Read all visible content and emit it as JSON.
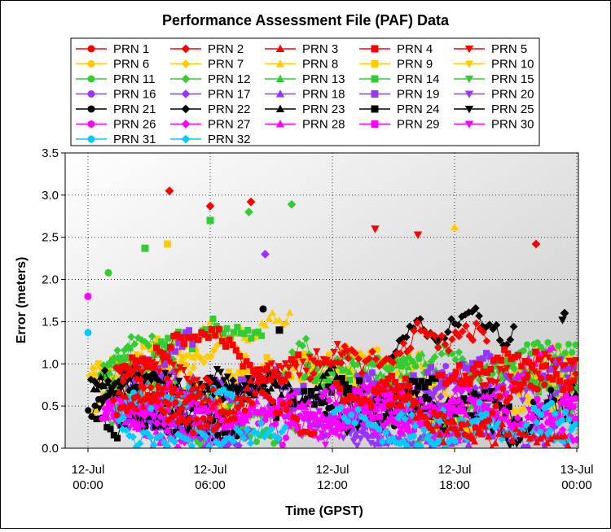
{
  "chart_data": {
    "type": "line",
    "title": "Performance Assessment File (PAF) Data",
    "xlabel": "Time (GPST)",
    "ylabel": "Error (meters)",
    "ylim": [
      0,
      3.5
    ],
    "yticks": [
      0.0,
      0.5,
      1.0,
      1.5,
      2.0,
      2.5,
      3.0,
      3.5
    ],
    "xlim": [
      "12-Jul 00:00",
      "13-Jul 00:00"
    ],
    "xticks": [
      {
        "line1": "12-Jul",
        "line2": "00:00",
        "hour": 0
      },
      {
        "line1": "12-Jul",
        "line2": "06:00",
        "hour": 6
      },
      {
        "line1": "12-Jul",
        "line2": "12:00",
        "hour": 12
      },
      {
        "line1": "12-Jul",
        "line2": "18:00",
        "hour": 18
      },
      {
        "line1": "13-Jul",
        "line2": "00:00",
        "hour": 24
      }
    ],
    "grid": true,
    "legend_position": "top",
    "series": [
      {
        "name": "PRN 1",
        "color": "#ff0000",
        "marker": "circle"
      },
      {
        "name": "PRN 2",
        "color": "#ff0000",
        "marker": "diamond"
      },
      {
        "name": "PRN 3",
        "color": "#ff0000",
        "marker": "triangle-up"
      },
      {
        "name": "PRN 4",
        "color": "#ff0000",
        "marker": "square"
      },
      {
        "name": "PRN 5",
        "color": "#ff0000",
        "marker": "triangle-down"
      },
      {
        "name": "PRN 6",
        "color": "#ffcc00",
        "marker": "circle"
      },
      {
        "name": "PRN 7",
        "color": "#ffcc00",
        "marker": "diamond"
      },
      {
        "name": "PRN 8",
        "color": "#ffcc00",
        "marker": "triangle-up"
      },
      {
        "name": "PRN 9",
        "color": "#ffcc00",
        "marker": "square"
      },
      {
        "name": "PRN 10",
        "color": "#ffcc00",
        "marker": "triangle-down"
      },
      {
        "name": "PRN 11",
        "color": "#33cc33",
        "marker": "circle"
      },
      {
        "name": "PRN 12",
        "color": "#33cc33",
        "marker": "diamond"
      },
      {
        "name": "PRN 13",
        "color": "#33cc33",
        "marker": "triangle-up"
      },
      {
        "name": "PRN 14",
        "color": "#33cc33",
        "marker": "square"
      },
      {
        "name": "PRN 15",
        "color": "#33cc33",
        "marker": "triangle-down"
      },
      {
        "name": "PRN 16",
        "color": "#9933ff",
        "marker": "circle"
      },
      {
        "name": "PRN 17",
        "color": "#9933ff",
        "marker": "diamond"
      },
      {
        "name": "PRN 18",
        "color": "#9933ff",
        "marker": "triangle-up"
      },
      {
        "name": "PRN 19",
        "color": "#9933ff",
        "marker": "square"
      },
      {
        "name": "PRN 20",
        "color": "#9933ff",
        "marker": "triangle-down"
      },
      {
        "name": "PRN 21",
        "color": "#000000",
        "marker": "circle"
      },
      {
        "name": "PRN 22",
        "color": "#000000",
        "marker": "diamond"
      },
      {
        "name": "PRN 23",
        "color": "#000000",
        "marker": "triangle-up"
      },
      {
        "name": "PRN 24",
        "color": "#000000",
        "marker": "square"
      },
      {
        "name": "PRN 25",
        "color": "#000000",
        "marker": "triangle-down"
      },
      {
        "name": "PRN 26",
        "color": "#ff00ff",
        "marker": "circle"
      },
      {
        "name": "PRN 27",
        "color": "#ff00ff",
        "marker": "diamond"
      },
      {
        "name": "PRN 28",
        "color": "#ff00ff",
        "marker": "triangle-up"
      },
      {
        "name": "PRN 29",
        "color": "#ff00ff",
        "marker": "square"
      },
      {
        "name": "PRN 30",
        "color": "#ff00ff",
        "marker": "triangle-down"
      },
      {
        "name": "PRN 31",
        "color": "#00ccff",
        "marker": "circle"
      },
      {
        "name": "PRN 32",
        "color": "#00ccff",
        "marker": "diamond"
      }
    ],
    "highlighted_points": [
      {
        "series": "PRN 2",
        "hour": 4.0,
        "value": 3.05
      },
      {
        "series": "PRN 2",
        "hour": 6.0,
        "value": 2.87
      },
      {
        "series": "PRN 2",
        "hour": 8.0,
        "value": 2.92
      },
      {
        "series": "PRN 12",
        "hour": 10.0,
        "value": 2.89
      },
      {
        "series": "PRN 12",
        "hour": 7.9,
        "value": 2.8
      },
      {
        "series": "PRN 14",
        "hour": 2.8,
        "value": 2.37
      },
      {
        "series": "PRN 14",
        "hour": 6.0,
        "value": 2.7
      },
      {
        "series": "PRN 8",
        "hour": 18.0,
        "value": 2.62
      },
      {
        "series": "PRN 5",
        "hour": 14.1,
        "value": 2.6
      },
      {
        "series": "PRN 5",
        "hour": 16.2,
        "value": 2.53
      },
      {
        "series": "PRN 2",
        "hour": 22.0,
        "value": 2.42
      },
      {
        "series": "PRN 17",
        "hour": 8.7,
        "value": 2.3
      },
      {
        "series": "PRN 9",
        "hour": 3.9,
        "value": 2.42
      },
      {
        "series": "PRN 11",
        "hour": 1.0,
        "value": 2.08
      },
      {
        "series": "PRN 21",
        "hour": 8.6,
        "value": 1.65
      },
      {
        "series": "PRN 24",
        "hour": 9.4,
        "value": 1.4
      },
      {
        "series": "PRN 22",
        "hour": 23.4,
        "value": 1.6
      },
      {
        "series": "PRN 25",
        "hour": 23.3,
        "value": 1.52
      },
      {
        "series": "PRN 31",
        "hour": 0.0,
        "value": 1.37
      },
      {
        "series": "PRN 26",
        "hour": 0.0,
        "value": 1.8
      }
    ]
  }
}
